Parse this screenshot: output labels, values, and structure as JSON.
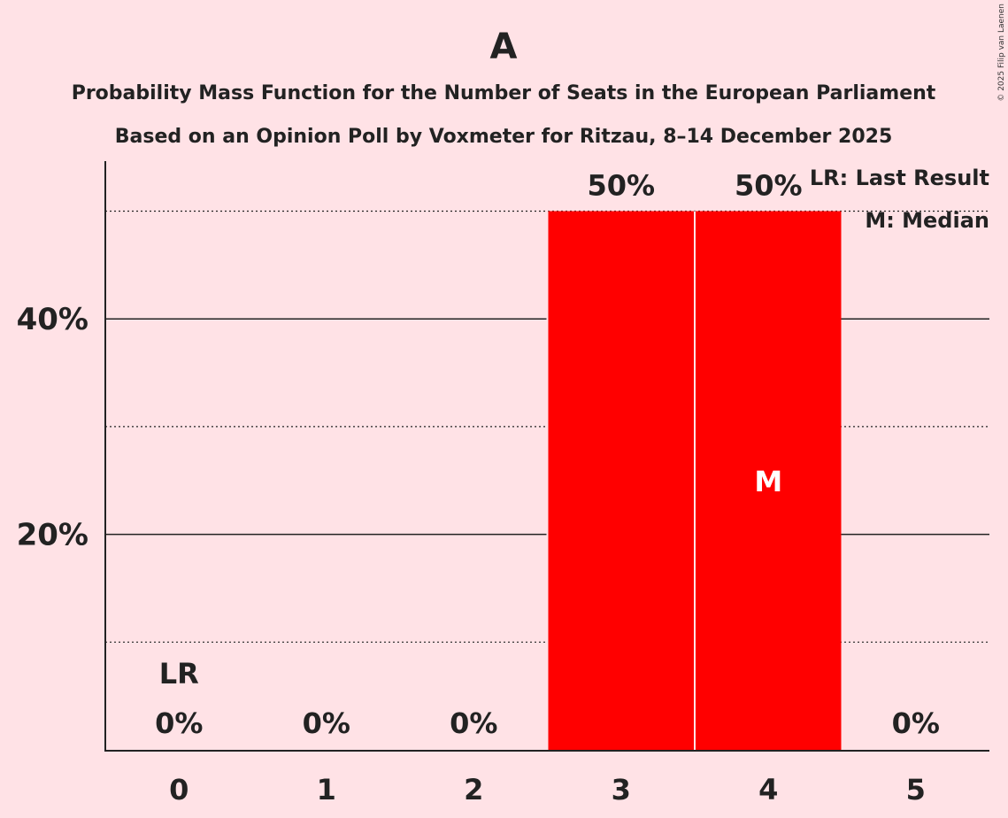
{
  "colors": {
    "background": "#FFE2E6",
    "bar": "#FF0000",
    "text": "#222222"
  },
  "chart_data": {
    "type": "bar",
    "title": "A",
    "subtitle_1": "Probability Mass Function for the Number of Seats in the European Parliament",
    "subtitle_2": "Based on an Opinion Poll by Voxmeter for Ritzau, 8–14 December 2025",
    "copyright": "© 2025 Filip van Laenen",
    "categories": [
      "0",
      "1",
      "2",
      "3",
      "4",
      "5"
    ],
    "values": [
      0,
      0,
      0,
      50,
      50,
      0
    ],
    "value_labels": [
      "0%",
      "0%",
      "0%",
      "50%",
      "50%",
      "0%"
    ],
    "ylim": [
      0,
      54
    ],
    "yticks": [
      {
        "value": 20,
        "label": "20%"
      },
      {
        "value": 40,
        "label": "40%"
      }
    ],
    "minor_gridlines": [
      10,
      30,
      50
    ],
    "last_result": {
      "category": "0",
      "label": "LR"
    },
    "median": {
      "category": "4",
      "label": "M"
    },
    "legend": {
      "placement": "top-right",
      "items": [
        "LR: Last Result",
        "M: Median"
      ]
    }
  }
}
